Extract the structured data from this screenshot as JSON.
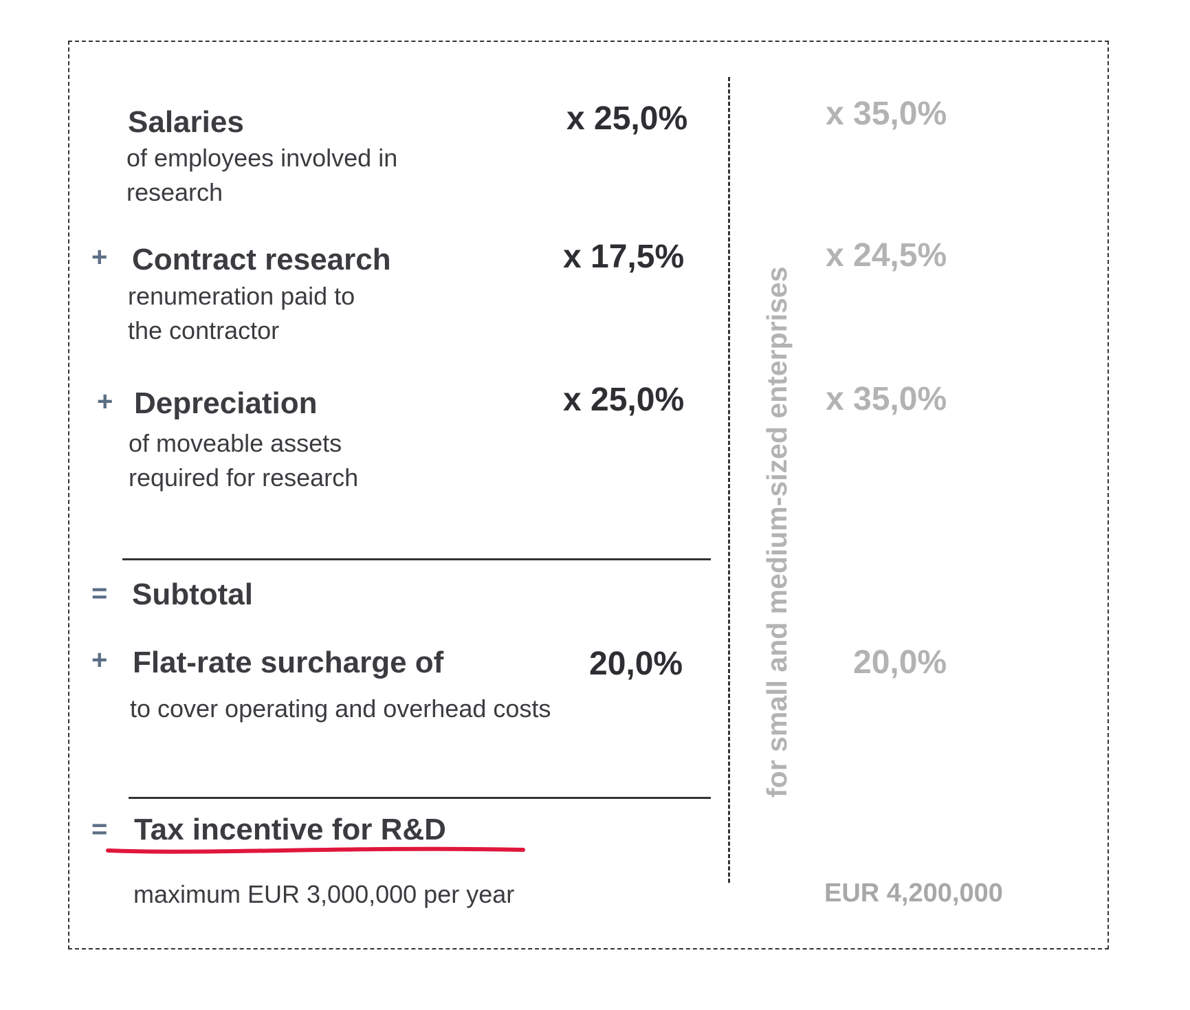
{
  "items": [
    {
      "operator": "",
      "title": "Salaries",
      "desc": [
        "of employees involved in",
        "research"
      ],
      "rate": "x 25,0%",
      "sme_rate": "x 35,0%"
    },
    {
      "operator": "+",
      "title": "Contract research",
      "desc": [
        "renumeration paid to",
        "the contractor"
      ],
      "rate": "x 17,5%",
      "sme_rate": "x 24,5%"
    },
    {
      "operator": "+",
      "title": "Depreciation",
      "desc": [
        "of moveable assets",
        "required for research"
      ],
      "rate": "x 25,0%",
      "sme_rate": "x 35,0%"
    }
  ],
  "subtotal": {
    "operator": "=",
    "title": "Subtotal"
  },
  "surcharge": {
    "operator": "+",
    "title": "Flat-rate surcharge of",
    "desc": "to cover operating and overhead costs",
    "rate": "20,0%",
    "sme_rate": "20,0%"
  },
  "result": {
    "operator": "=",
    "title": "Tax incentive for R&D",
    "desc": "maximum EUR 3,000,000 per year",
    "sme_max": "EUR 4,200,000"
  },
  "sme_label": "for small and medium-sized enterprises",
  "colors": {
    "accent_underline": "#e0173c",
    "text": "#3b3c40",
    "sme_gray": "#b3b3b3",
    "operator": "#5b6e85"
  }
}
